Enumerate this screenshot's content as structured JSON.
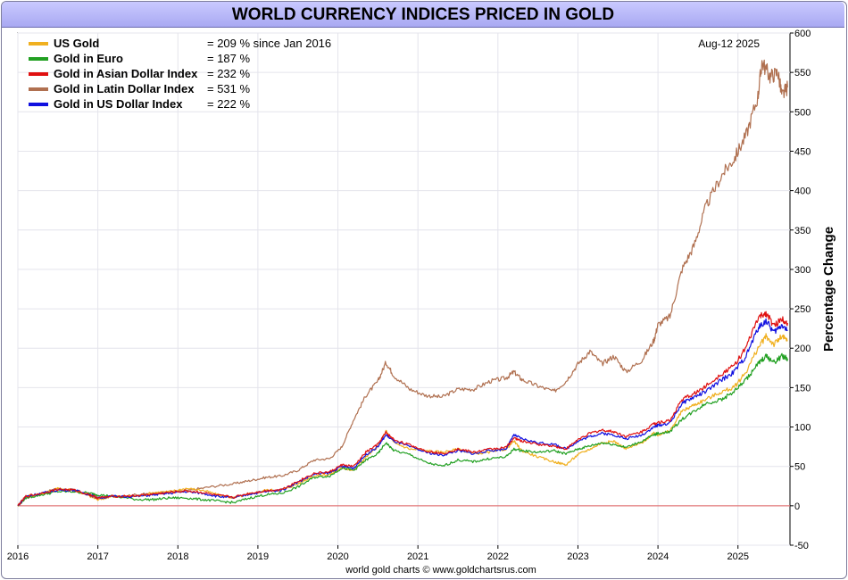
{
  "title": "WORLD CURRENCY INDICES PRICED IN GOLD",
  "date_label": "Aug-12  2025",
  "footer": "world gold charts © www.goldchartsrus.com",
  "chart_data": {
    "type": "line",
    "title": "WORLD CURRENCY INDICES PRICED IN GOLD",
    "ylabel": "Percentage Change",
    "xlabel": "",
    "ylim": [
      -50,
      600
    ],
    "xlim": [
      2016.0,
      2025.65
    ],
    "y_ticks": [
      -50,
      0,
      50,
      100,
      150,
      200,
      250,
      300,
      350,
      400,
      450,
      500,
      550,
      600
    ],
    "x_ticks": [
      "2016",
      "2017",
      "2018",
      "2019",
      "2020",
      "2021",
      "2022",
      "2023",
      "2024",
      "2025"
    ],
    "grid": true,
    "legend_position": "top-left",
    "zero_line_color": "#e06060",
    "series": [
      {
        "name": "Gold in Latin Dollar Index",
        "legend_value": "= 531 %",
        "color": "#b07050",
        "points": [
          [
            2016.0,
            0
          ],
          [
            2016.1,
            10
          ],
          [
            2016.3,
            16
          ],
          [
            2016.5,
            22
          ],
          [
            2016.7,
            20
          ],
          [
            2016.9,
            14
          ],
          [
            2017.0,
            10
          ],
          [
            2017.2,
            12
          ],
          [
            2017.5,
            14
          ],
          [
            2017.7,
            16
          ],
          [
            2017.9,
            17
          ],
          [
            2018.1,
            19
          ],
          [
            2018.4,
            24
          ],
          [
            2018.7,
            28
          ],
          [
            2018.9,
            32
          ],
          [
            2019.1,
            36
          ],
          [
            2019.3,
            38
          ],
          [
            2019.5,
            45
          ],
          [
            2019.7,
            58
          ],
          [
            2019.9,
            60
          ],
          [
            2020.05,
            75
          ],
          [
            2020.2,
            110
          ],
          [
            2020.35,
            140
          ],
          [
            2020.5,
            158
          ],
          [
            2020.6,
            182
          ],
          [
            2020.7,
            165
          ],
          [
            2020.9,
            148
          ],
          [
            2021.1,
            140
          ],
          [
            2021.3,
            138
          ],
          [
            2021.5,
            148
          ],
          [
            2021.7,
            148
          ],
          [
            2021.9,
            158
          ],
          [
            2022.1,
            162
          ],
          [
            2022.2,
            170
          ],
          [
            2022.3,
            160
          ],
          [
            2022.5,
            152
          ],
          [
            2022.7,
            145
          ],
          [
            2022.85,
            158
          ],
          [
            2023.0,
            180
          ],
          [
            2023.15,
            196
          ],
          [
            2023.3,
            180
          ],
          [
            2023.45,
            190
          ],
          [
            2023.6,
            170
          ],
          [
            2023.8,
            185
          ],
          [
            2023.95,
            210
          ],
          [
            2024.0,
            230
          ],
          [
            2024.15,
            240
          ],
          [
            2024.3,
            300
          ],
          [
            2024.45,
            330
          ],
          [
            2024.6,
            380
          ],
          [
            2024.8,
            420
          ],
          [
            2024.95,
            440
          ],
          [
            2025.1,
            470
          ],
          [
            2025.25,
            520
          ],
          [
            2025.3,
            563
          ],
          [
            2025.4,
            545
          ],
          [
            2025.5,
            550
          ],
          [
            2025.55,
            520
          ],
          [
            2025.62,
            531
          ]
        ]
      },
      {
        "name": "US Gold",
        "legend_value": "= 209 % since Jan 2016",
        "color": "#f0b020",
        "points": [
          [
            2016.0,
            0
          ],
          [
            2016.1,
            12
          ],
          [
            2016.3,
            15
          ],
          [
            2016.5,
            22
          ],
          [
            2016.7,
            20
          ],
          [
            2016.9,
            12
          ],
          [
            2017.0,
            8
          ],
          [
            2017.2,
            12
          ],
          [
            2017.5,
            12
          ],
          [
            2017.7,
            17
          ],
          [
            2017.9,
            18
          ],
          [
            2018.1,
            22
          ],
          [
            2018.3,
            20
          ],
          [
            2018.5,
            14
          ],
          [
            2018.7,
            10
          ],
          [
            2018.9,
            15
          ],
          [
            2019.1,
            20
          ],
          [
            2019.3,
            20
          ],
          [
            2019.5,
            28
          ],
          [
            2019.7,
            38
          ],
          [
            2019.9,
            40
          ],
          [
            2020.05,
            48
          ],
          [
            2020.2,
            45
          ],
          [
            2020.35,
            62
          ],
          [
            2020.5,
            75
          ],
          [
            2020.6,
            95
          ],
          [
            2020.7,
            80
          ],
          [
            2020.9,
            72
          ],
          [
            2021.1,
            70
          ],
          [
            2021.3,
            68
          ],
          [
            2021.5,
            72
          ],
          [
            2021.7,
            66
          ],
          [
            2021.9,
            68
          ],
          [
            2022.1,
            72
          ],
          [
            2022.2,
            82
          ],
          [
            2022.3,
            70
          ],
          [
            2022.5,
            62
          ],
          [
            2022.7,
            56
          ],
          [
            2022.85,
            52
          ],
          [
            2023.0,
            65
          ],
          [
            2023.15,
            72
          ],
          [
            2023.3,
            80
          ],
          [
            2023.45,
            82
          ],
          [
            2023.6,
            72
          ],
          [
            2023.8,
            80
          ],
          [
            2023.95,
            92
          ],
          [
            2024.0,
            90
          ],
          [
            2024.15,
            95
          ],
          [
            2024.3,
            120
          ],
          [
            2024.45,
            128
          ],
          [
            2024.6,
            135
          ],
          [
            2024.8,
            145
          ],
          [
            2024.95,
            150
          ],
          [
            2025.1,
            170
          ],
          [
            2025.25,
            200
          ],
          [
            2025.35,
            215
          ],
          [
            2025.45,
            205
          ],
          [
            2025.55,
            215
          ],
          [
            2025.62,
            209
          ]
        ]
      },
      {
        "name": "Gold in Euro",
        "legend_value": "= 187 %",
        "color": "#22a022",
        "points": [
          [
            2016.0,
            0
          ],
          [
            2016.1,
            10
          ],
          [
            2016.3,
            14
          ],
          [
            2016.5,
            18
          ],
          [
            2016.7,
            18
          ],
          [
            2016.9,
            16
          ],
          [
            2017.0,
            14
          ],
          [
            2017.2,
            12
          ],
          [
            2017.5,
            8
          ],
          [
            2017.7,
            8
          ],
          [
            2017.9,
            10
          ],
          [
            2018.1,
            10
          ],
          [
            2018.3,
            8
          ],
          [
            2018.5,
            6
          ],
          [
            2018.7,
            4
          ],
          [
            2018.9,
            10
          ],
          [
            2019.1,
            14
          ],
          [
            2019.3,
            16
          ],
          [
            2019.5,
            24
          ],
          [
            2019.7,
            36
          ],
          [
            2019.9,
            38
          ],
          [
            2020.05,
            48
          ],
          [
            2020.2,
            45
          ],
          [
            2020.35,
            58
          ],
          [
            2020.5,
            66
          ],
          [
            2020.6,
            80
          ],
          [
            2020.7,
            70
          ],
          [
            2020.9,
            65
          ],
          [
            2021.1,
            55
          ],
          [
            2021.3,
            50
          ],
          [
            2021.5,
            58
          ],
          [
            2021.7,
            56
          ],
          [
            2021.9,
            60
          ],
          [
            2022.1,
            62
          ],
          [
            2022.2,
            72
          ],
          [
            2022.3,
            70
          ],
          [
            2022.5,
            68
          ],
          [
            2022.7,
            70
          ],
          [
            2022.85,
            66
          ],
          [
            2023.0,
            72
          ],
          [
            2023.15,
            76
          ],
          [
            2023.3,
            80
          ],
          [
            2023.45,
            78
          ],
          [
            2023.6,
            74
          ],
          [
            2023.8,
            82
          ],
          [
            2023.95,
            90
          ],
          [
            2024.0,
            92
          ],
          [
            2024.15,
            94
          ],
          [
            2024.3,
            110
          ],
          [
            2024.45,
            120
          ],
          [
            2024.6,
            130
          ],
          [
            2024.8,
            135
          ],
          [
            2024.95,
            145
          ],
          [
            2025.1,
            160
          ],
          [
            2025.25,
            180
          ],
          [
            2025.35,
            190
          ],
          [
            2025.45,
            182
          ],
          [
            2025.55,
            190
          ],
          [
            2025.62,
            187
          ]
        ]
      },
      {
        "name": "Gold in US Dollar Index",
        "legend_value": "= 222 %",
        "color": "#1010e0",
        "points": [
          [
            2016.0,
            0
          ],
          [
            2016.1,
            12
          ],
          [
            2016.3,
            16
          ],
          [
            2016.5,
            20
          ],
          [
            2016.7,
            20
          ],
          [
            2016.9,
            14
          ],
          [
            2017.0,
            10
          ],
          [
            2017.2,
            12
          ],
          [
            2017.5,
            12
          ],
          [
            2017.7,
            14
          ],
          [
            2017.9,
            16
          ],
          [
            2018.1,
            18
          ],
          [
            2018.3,
            16
          ],
          [
            2018.5,
            12
          ],
          [
            2018.7,
            10
          ],
          [
            2018.9,
            15
          ],
          [
            2019.1,
            18
          ],
          [
            2019.3,
            20
          ],
          [
            2019.5,
            30
          ],
          [
            2019.7,
            40
          ],
          [
            2019.9,
            42
          ],
          [
            2020.05,
            50
          ],
          [
            2020.2,
            48
          ],
          [
            2020.35,
            65
          ],
          [
            2020.5,
            75
          ],
          [
            2020.6,
            90
          ],
          [
            2020.7,
            82
          ],
          [
            2020.9,
            75
          ],
          [
            2021.1,
            68
          ],
          [
            2021.3,
            64
          ],
          [
            2021.5,
            70
          ],
          [
            2021.7,
            66
          ],
          [
            2021.9,
            70
          ],
          [
            2022.1,
            72
          ],
          [
            2022.2,
            90
          ],
          [
            2022.3,
            85
          ],
          [
            2022.5,
            80
          ],
          [
            2022.7,
            78
          ],
          [
            2022.85,
            72
          ],
          [
            2023.0,
            82
          ],
          [
            2023.15,
            88
          ],
          [
            2023.3,
            92
          ],
          [
            2023.45,
            90
          ],
          [
            2023.6,
            85
          ],
          [
            2023.8,
            90
          ],
          [
            2023.95,
            100
          ],
          [
            2024.0,
            102
          ],
          [
            2024.15,
            105
          ],
          [
            2024.3,
            130
          ],
          [
            2024.45,
            138
          ],
          [
            2024.6,
            145
          ],
          [
            2024.8,
            160
          ],
          [
            2024.95,
            170
          ],
          [
            2025.1,
            190
          ],
          [
            2025.25,
            225
          ],
          [
            2025.35,
            235
          ],
          [
            2025.45,
            220
          ],
          [
            2025.55,
            230
          ],
          [
            2025.62,
            222
          ]
        ]
      },
      {
        "name": "Gold in Asian Dollar Index",
        "legend_value": "= 232 %",
        "color": "#e01010",
        "points": [
          [
            2016.0,
            0
          ],
          [
            2016.1,
            12
          ],
          [
            2016.3,
            16
          ],
          [
            2016.5,
            21
          ],
          [
            2016.7,
            20
          ],
          [
            2016.9,
            14
          ],
          [
            2017.0,
            10
          ],
          [
            2017.2,
            12
          ],
          [
            2017.5,
            13
          ],
          [
            2017.7,
            15
          ],
          [
            2017.9,
            17
          ],
          [
            2018.1,
            19
          ],
          [
            2018.3,
            17
          ],
          [
            2018.5,
            13
          ],
          [
            2018.7,
            11
          ],
          [
            2018.9,
            16
          ],
          [
            2019.1,
            19
          ],
          [
            2019.3,
            21
          ],
          [
            2019.5,
            31
          ],
          [
            2019.7,
            41
          ],
          [
            2019.9,
            43
          ],
          [
            2020.05,
            52
          ],
          [
            2020.2,
            50
          ],
          [
            2020.35,
            68
          ],
          [
            2020.5,
            78
          ],
          [
            2020.6,
            93
          ],
          [
            2020.7,
            84
          ],
          [
            2020.9,
            77
          ],
          [
            2021.1,
            70
          ],
          [
            2021.3,
            66
          ],
          [
            2021.5,
            72
          ],
          [
            2021.7,
            68
          ],
          [
            2021.9,
            72
          ],
          [
            2022.1,
            74
          ],
          [
            2022.2,
            86
          ],
          [
            2022.3,
            82
          ],
          [
            2022.5,
            78
          ],
          [
            2022.7,
            76
          ],
          [
            2022.85,
            72
          ],
          [
            2023.0,
            84
          ],
          [
            2023.15,
            92
          ],
          [
            2023.3,
            96
          ],
          [
            2023.45,
            94
          ],
          [
            2023.6,
            88
          ],
          [
            2023.8,
            94
          ],
          [
            2023.95,
            104
          ],
          [
            2024.0,
            106
          ],
          [
            2024.15,
            108
          ],
          [
            2024.3,
            135
          ],
          [
            2024.45,
            142
          ],
          [
            2024.6,
            152
          ],
          [
            2024.8,
            168
          ],
          [
            2024.95,
            178
          ],
          [
            2025.1,
            200
          ],
          [
            2025.25,
            238
          ],
          [
            2025.35,
            245
          ],
          [
            2025.45,
            228
          ],
          [
            2025.55,
            238
          ],
          [
            2025.62,
            232
          ]
        ]
      }
    ]
  },
  "legend_order": [
    {
      "label": "US Gold",
      "value": "= 209 % since Jan 2016",
      "color": "#f0b020"
    },
    {
      "label": "Gold in Euro",
      "value": "= 187 %",
      "color": "#22a022"
    },
    {
      "label": "Gold in Asian Dollar Index",
      "value": "= 232 %",
      "color": "#e01010"
    },
    {
      "label": "Gold in Latin Dollar Index",
      "value": "= 531 %",
      "color": "#b07050"
    },
    {
      "label": "Gold in US Dollar Index",
      "value": "= 222 %",
      "color": "#1010e0"
    }
  ]
}
